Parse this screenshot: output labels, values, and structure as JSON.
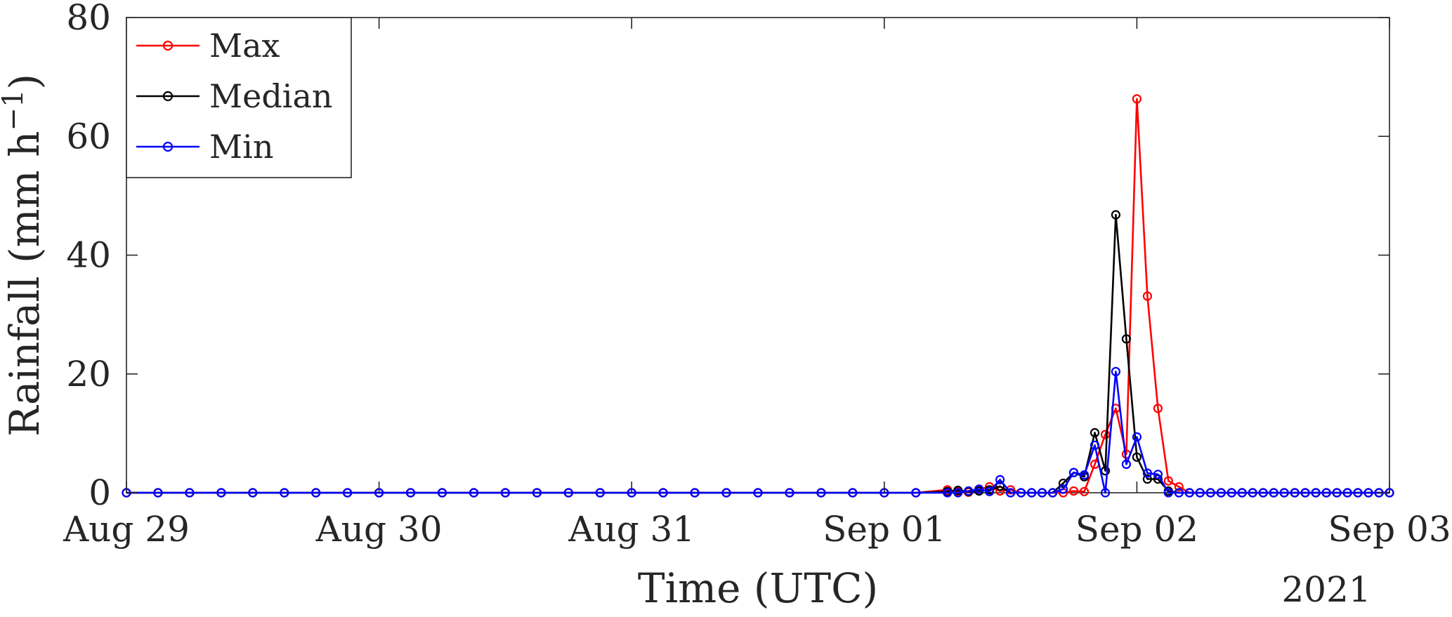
{
  "chart_data": {
    "type": "line",
    "title": "",
    "xlabel": "Time (UTC)",
    "ylabel": "Rainfall (mm h−1)",
    "ylabel_parts": {
      "main": "Rainfall (mm h",
      "sup": "−1",
      "close": ")"
    },
    "year_label": "2021",
    "x_tick_labels": [
      "Aug 29",
      "Aug 30",
      "Aug 31",
      "Sep 01",
      "Sep 02",
      "Sep 03"
    ],
    "x_range_days": [
      "Aug 29",
      "Sep 03"
    ],
    "x_values_hours_since_aug29": [
      0,
      3,
      6,
      9,
      12,
      15,
      18,
      21,
      24,
      27,
      30,
      33,
      36,
      39,
      42,
      45,
      48,
      51,
      54,
      57,
      60,
      63,
      66,
      69,
      72,
      75,
      78,
      81,
      84,
      87,
      90,
      93,
      96,
      99,
      102,
      105,
      108,
      111,
      114,
      117,
      120
    ],
    "y_ticks": [
      0,
      20,
      40,
      60,
      80
    ],
    "ylim": [
      0,
      80
    ],
    "grid": false,
    "legend_position": "top-left",
    "series": [
      {
        "name": "Max",
        "color": "#ff0000",
        "x": [
          0,
          3,
          6,
          9,
          12,
          15,
          18,
          21,
          24,
          27,
          30,
          33,
          36,
          39,
          42,
          45,
          48,
          51,
          54,
          57,
          60,
          63,
          66,
          69,
          72,
          75,
          78,
          79,
          80,
          81,
          82,
          83,
          84,
          85,
          86,
          87,
          88,
          89,
          90,
          91,
          92,
          93,
          94,
          95,
          96,
          97,
          98,
          99,
          100,
          101,
          102,
          103,
          104,
          105,
          106,
          107,
          108,
          109,
          110,
          111,
          112,
          113,
          114,
          115,
          116,
          117,
          118,
          119,
          120
        ],
        "y": [
          0,
          0,
          0,
          0,
          0,
          0,
          0,
          0,
          0,
          0,
          0,
          0,
          0,
          0,
          0,
          0,
          0,
          0,
          0,
          0,
          0,
          0,
          0,
          0,
          0,
          0,
          0.5,
          0.2,
          0.1,
          0.6,
          1.0,
          0.3,
          0.5,
          0,
          0,
          0,
          0,
          0,
          0.3,
          0.2,
          4.8,
          9.8,
          14.2,
          6.5,
          66.3,
          33.1,
          14.2,
          2.0,
          1.0,
          0,
          0,
          0,
          0,
          0,
          0,
          0,
          0,
          0,
          0,
          0,
          0,
          0,
          0,
          0,
          0,
          0,
          0,
          0,
          0
        ]
      },
      {
        "name": "Median",
        "color": "#000000",
        "x": [
          0,
          3,
          6,
          9,
          12,
          15,
          18,
          21,
          24,
          27,
          30,
          33,
          36,
          39,
          42,
          45,
          48,
          51,
          54,
          57,
          60,
          63,
          66,
          69,
          72,
          75,
          78,
          79,
          80,
          81,
          82,
          83,
          84,
          85,
          86,
          87,
          88,
          89,
          90,
          91,
          92,
          93,
          94,
          95,
          96,
          97,
          98,
          99,
          100,
          101,
          102,
          103,
          104,
          105,
          106,
          107,
          108,
          109,
          110,
          111,
          112,
          113,
          114,
          115,
          116,
          117,
          118,
          119,
          120
        ],
        "y": [
          0,
          0,
          0,
          0,
          0,
          0,
          0,
          0,
          0,
          0,
          0,
          0,
          0,
          0,
          0,
          0,
          0,
          0,
          0,
          0,
          0,
          0,
          0,
          0,
          0,
          0,
          0.2,
          0.4,
          0.2,
          0.3,
          0.5,
          1.1,
          0,
          0,
          0,
          0,
          0,
          1.6,
          3.4,
          2.7,
          10.1,
          3.7,
          46.8,
          25.9,
          6.0,
          2.3,
          2.3,
          0.3,
          0,
          0,
          0,
          0,
          0,
          0,
          0,
          0,
          0,
          0,
          0,
          0,
          0,
          0,
          0,
          0,
          0,
          0,
          0,
          0,
          0
        ]
      },
      {
        "name": "Min",
        "color": "#0000ff",
        "x": [
          0,
          3,
          6,
          9,
          12,
          15,
          18,
          21,
          24,
          27,
          30,
          33,
          36,
          39,
          42,
          45,
          48,
          51,
          54,
          57,
          60,
          63,
          66,
          69,
          72,
          75,
          78,
          79,
          80,
          81,
          82,
          83,
          84,
          85,
          86,
          87,
          88,
          89,
          90,
          91,
          92,
          93,
          94,
          95,
          96,
          97,
          98,
          99,
          100,
          101,
          102,
          103,
          104,
          105,
          106,
          107,
          108,
          109,
          110,
          111,
          112,
          113,
          114,
          115,
          116,
          117,
          118,
          119,
          120
        ],
        "y": [
          0,
          0,
          0,
          0,
          0,
          0,
          0,
          0,
          0,
          0,
          0,
          0,
          0,
          0,
          0,
          0,
          0,
          0,
          0,
          0,
          0,
          0,
          0,
          0,
          0,
          0,
          0,
          0,
          0.3,
          0.6,
          0.2,
          2.2,
          0,
          0,
          0,
          0,
          0,
          0.6,
          3.4,
          3.0,
          8.0,
          0,
          20.4,
          4.8,
          9.4,
          3.3,
          3.1,
          0,
          0,
          0,
          0,
          0,
          0,
          0,
          0,
          0,
          0,
          0,
          0,
          0,
          0,
          0,
          0,
          0,
          0,
          0,
          0,
          0,
          0
        ]
      }
    ]
  }
}
